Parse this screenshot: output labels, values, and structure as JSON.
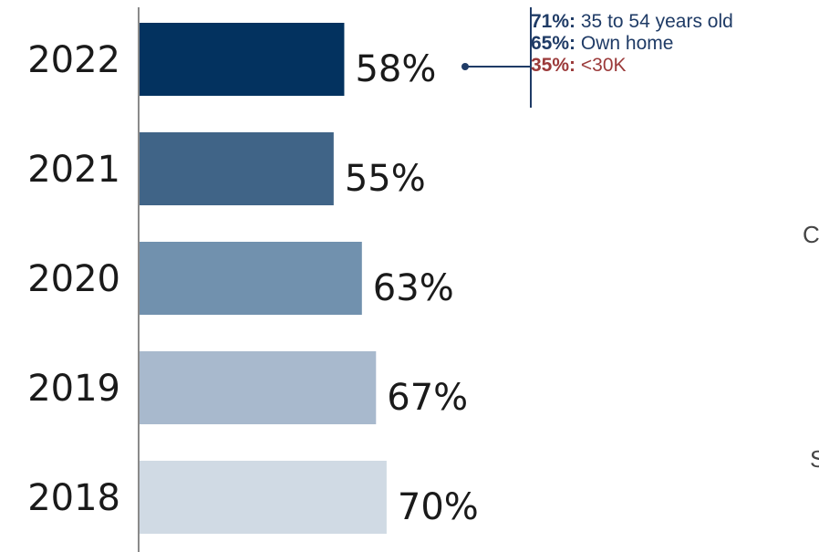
{
  "chart_data": {
    "type": "bar",
    "orientation": "horizontal",
    "categories": [
      "2022",
      "2021",
      "2020",
      "2019",
      "2018"
    ],
    "values": [
      58,
      55,
      63,
      67,
      70
    ],
    "value_labels": [
      "58%",
      "55%",
      "63%",
      "67%",
      "70%"
    ],
    "bar_colors": [
      "#03325f",
      "#406487",
      "#7191ae",
      "#a8b9cd",
      "#d0dae4"
    ],
    "xlim": [
      0,
      100
    ],
    "grid": false,
    "annotation": {
      "target_category": "2022",
      "lines": [
        {
          "pct": "71%:",
          "text": "35 to 54 years old",
          "color": "#1f3b66"
        },
        {
          "pct": "65%:",
          "text": "Own home",
          "color": "#1f3b66"
        },
        {
          "pct": "35%:",
          "text": "<30K",
          "color": "#9b3a3a"
        }
      ]
    }
  },
  "edge_text": [
    "C",
    "S"
  ]
}
